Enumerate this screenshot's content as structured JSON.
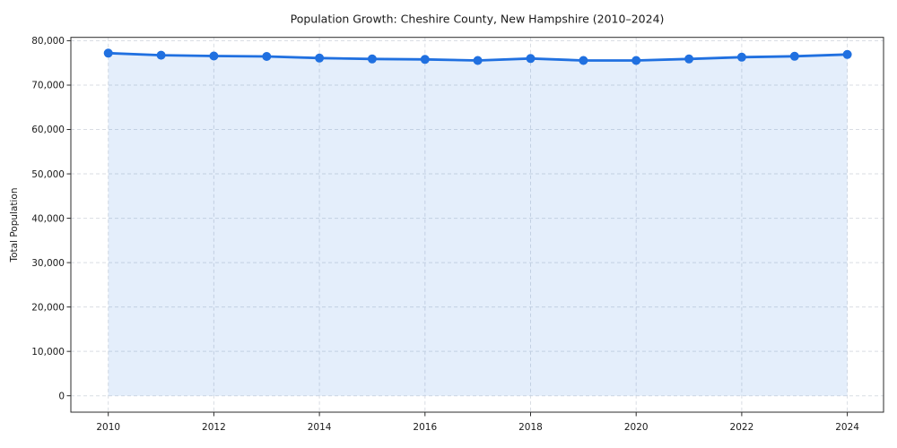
{
  "chart_data": {
    "type": "line",
    "title": "Population Growth: Cheshire County, New Hampshire (2010–2024)",
    "xlabel": "",
    "ylabel": "Total Population",
    "x": [
      2010,
      2011,
      2012,
      2013,
      2014,
      2015,
      2016,
      2017,
      2018,
      2019,
      2020,
      2021,
      2022,
      2023,
      2024
    ],
    "values": [
      77200,
      76750,
      76550,
      76450,
      76100,
      75900,
      75800,
      75550,
      76000,
      75550,
      75550,
      75900,
      76300,
      76500,
      76900
    ],
    "series_name": "Total Population",
    "ylim": [
      0,
      80000
    ],
    "yticks": [
      0,
      10000,
      20000,
      30000,
      40000,
      50000,
      60000,
      70000,
      80000
    ],
    "xticks": [
      2010,
      2012,
      2014,
      2016,
      2018,
      2020,
      2022,
      2024
    ],
    "grid": true,
    "grid_style": "dashed",
    "legend_position": "none",
    "marker": "circle",
    "line_color": "#2070e0",
    "marker_color": "#2070e0",
    "fill_color": "#2070e0",
    "fill_opacity": 0.12,
    "grid_color": "#d9dde3",
    "spine_color": "#2b2b2b",
    "text_color": "#1a1a1a",
    "background_color": "#ffffff"
  }
}
